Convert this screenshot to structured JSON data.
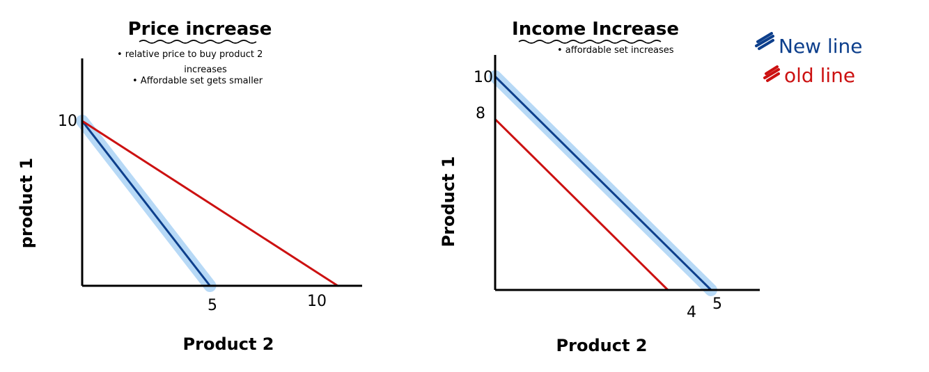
{
  "chart_data": [
    {
      "type": "line",
      "title": "Price increase",
      "notes": [
        "• relative price to buy product 2",
        "increases",
        "• Affordable set gets smaller"
      ],
      "xlabel": "Product 2",
      "ylabel": "product 1",
      "x_ticks": [
        "5",
        "10"
      ],
      "y_ticks": [
        "10"
      ],
      "xlim": [
        0,
        13
      ],
      "ylim": [
        0,
        14
      ],
      "series": [
        {
          "role": "new",
          "highlight": true,
          "points": [
            [
              0,
              10
            ],
            [
              5,
              0
            ]
          ]
        },
        {
          "role": "old",
          "highlight": false,
          "points": [
            [
              0,
              10
            ],
            [
              10,
              0
            ]
          ]
        }
      ]
    },
    {
      "type": "line",
      "title": "Income Increase",
      "notes": [
        "• affordable set increases"
      ],
      "xlabel": "Product 2",
      "ylabel": "Product 1",
      "x_ticks": [
        "4",
        "5"
      ],
      "y_ticks": [
        "10",
        "8"
      ],
      "xlim": [
        0,
        6.3
      ],
      "ylim": [
        0,
        14
      ],
      "series": [
        {
          "role": "new",
          "highlight": true,
          "points": [
            [
              0,
              10
            ],
            [
              5,
              0
            ]
          ]
        },
        {
          "role": "old",
          "highlight": false,
          "points": [
            [
              0,
              8
            ],
            [
              4,
              0
            ]
          ]
        }
      ]
    }
  ],
  "legend": [
    {
      "label": "New line",
      "color": "#0d3f8c"
    },
    {
      "label": "old line",
      "color": "#cc1111"
    }
  ],
  "colors": {
    "new": "#0d3f8c",
    "old": "#cc1111",
    "highlight": "#b7d9f6",
    "axis": "#000000"
  }
}
